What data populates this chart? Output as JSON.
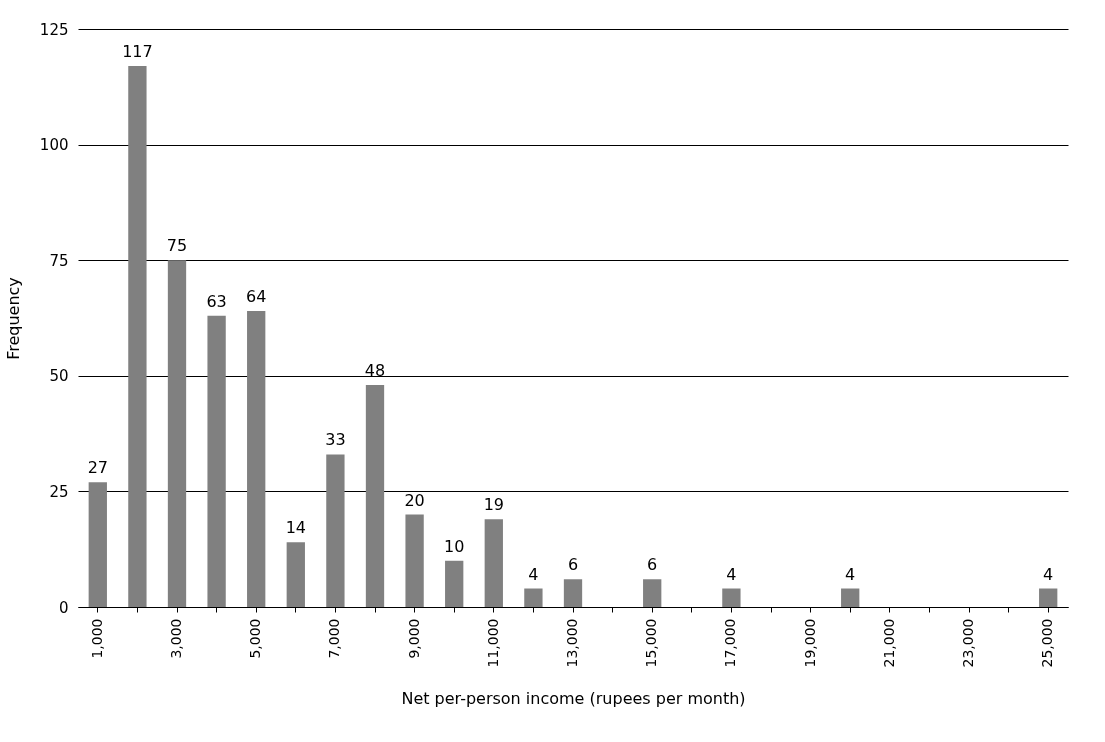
{
  "chart_data": {
    "type": "bar",
    "xlabel": "Net per-person income (rupees per month)",
    "ylabel": "Frequency",
    "categories": [
      "1,000",
      null,
      "3,000",
      null,
      "5,000",
      null,
      "7,000",
      null,
      "9,000",
      null,
      "11,000",
      null,
      "13,000",
      null,
      "15,000",
      null,
      "17,000",
      null,
      "19,000",
      null,
      "21,000",
      null,
      "23,000",
      null,
      "25,000"
    ],
    "values": [
      27,
      117,
      75,
      63,
      64,
      14,
      33,
      48,
      20,
      10,
      19,
      4,
      6,
      null,
      6,
      null,
      4,
      null,
      null,
      4,
      null,
      null,
      null,
      null,
      4
    ],
    "color": "#808080",
    "ylim": [
      0,
      125
    ],
    "yticks": [
      0,
      25,
      50,
      75,
      100,
      125
    ],
    "grid": "y",
    "data_labels": true
  }
}
